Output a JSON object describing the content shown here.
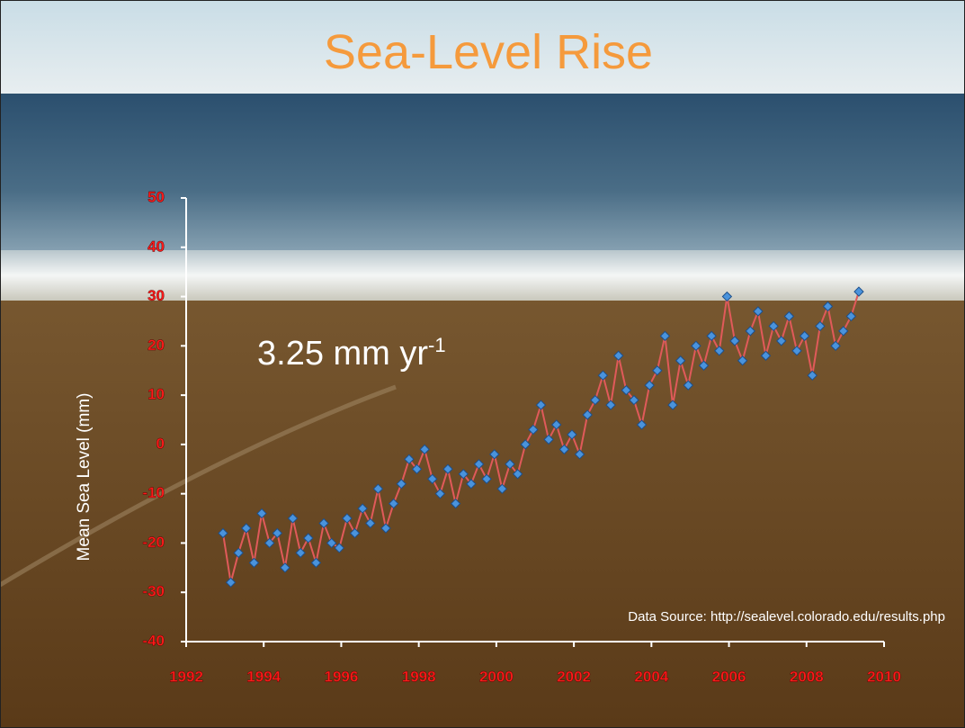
{
  "chart_data": {
    "type": "line",
    "title": "Sea-Level Rise",
    "y_label": "Mean Sea Level (mm)",
    "annotation": "3.25 mm yr",
    "annotation_superscript": "-1",
    "source": "Data Source: http://sealevel.colorado.edu/results.php",
    "x": [
      1992.95,
      1993.15,
      1993.35,
      1993.55,
      1993.75,
      1993.95,
      1994.15,
      1994.35,
      1994.55,
      1994.75,
      1994.95,
      1995.15,
      1995.35,
      1995.55,
      1995.75,
      1995.95,
      1996.15,
      1996.35,
      1996.55,
      1996.75,
      1996.95,
      1997.15,
      1997.35,
      1997.55,
      1997.75,
      1997.95,
      1998.15,
      1998.35,
      1998.55,
      1998.75,
      1998.95,
      1999.15,
      1999.35,
      1999.55,
      1999.75,
      1999.95,
      2000.15,
      2000.35,
      2000.55,
      2000.75,
      2000.95,
      2001.15,
      2001.35,
      2001.55,
      2001.75,
      2001.95,
      2002.15,
      2002.35,
      2002.55,
      2002.75,
      2002.95,
      2003.15,
      2003.35,
      2003.55,
      2003.75,
      2003.95,
      2004.15,
      2004.35,
      2004.55,
      2004.75,
      2004.95,
      2005.15,
      2005.35,
      2005.55,
      2005.75,
      2005.95,
      2006.15,
      2006.35,
      2006.55,
      2006.75,
      2006.95,
      2007.15,
      2007.35,
      2007.55,
      2007.75,
      2007.95,
      2008.15,
      2008.35,
      2008.55,
      2008.75,
      2008.95,
      2009.15,
      2009.35
    ],
    "series": [
      {
        "color": "#e05a5a",
        "marker_color": "#4a93dc",
        "values": [
          -18,
          -28,
          -22,
          -17,
          -24,
          -14,
          -20,
          -18,
          -25,
          -15,
          -22,
          -19,
          -24,
          -16,
          -20,
          -21,
          -15,
          -18,
          -13,
          -16,
          -9,
          -17,
          -12,
          -8,
          -3,
          -5,
          -1,
          -7,
          -10,
          -5,
          -12,
          -6,
          -8,
          -4,
          -7,
          -2,
          -9,
          -4,
          -6,
          0,
          3,
          8,
          1,
          4,
          -1,
          2,
          -2,
          6,
          9,
          14,
          8,
          18,
          11,
          9,
          4,
          12,
          15,
          22,
          8,
          17,
          12,
          20,
          16,
          22,
          19,
          30,
          21,
          17,
          23,
          27,
          18,
          24,
          21,
          26,
          19,
          22,
          14,
          24,
          28,
          20,
          23,
          26,
          31
        ]
      }
    ],
    "xlim": [
      1992,
      2010
    ],
    "xticks": [
      1992,
      1994,
      1996,
      1998,
      2000,
      2002,
      2004,
      2006,
      2008,
      2010
    ],
    "ylim": [
      -40,
      50
    ],
    "yticks": [
      -40,
      -30,
      -20,
      -10,
      0,
      10,
      20,
      30,
      40,
      50
    ]
  }
}
